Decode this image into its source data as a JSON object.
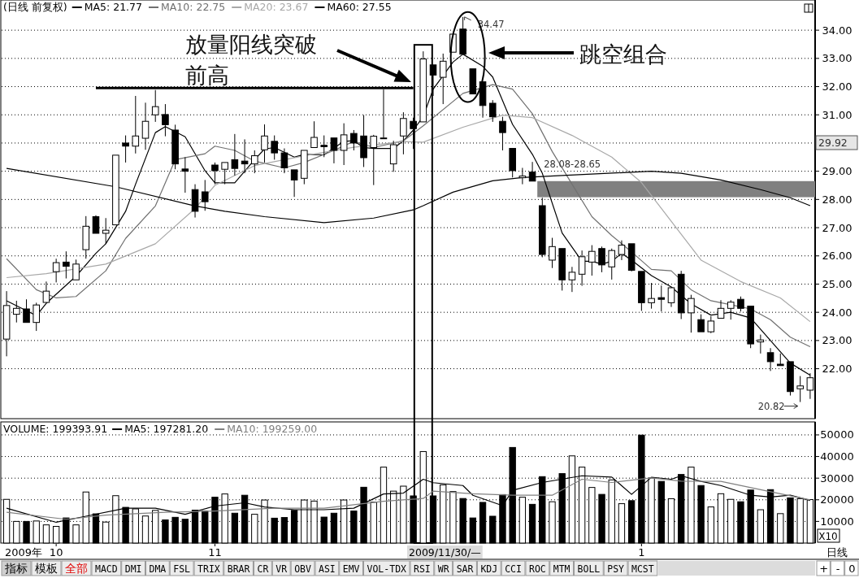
{
  "chart_data": [
    {
      "type": "candlestick",
      "title": "(日线 前复权)",
      "legend": "top left",
      "grid": "y",
      "tick_labels": "y",
      "categories": [
        null,
        null,
        null,
        null,
        null,
        null,
        null,
        null,
        null,
        null,
        null,
        null,
        null,
        null,
        null,
        null,
        null,
        null,
        null,
        null,
        null,
        null,
        null,
        null,
        null,
        null,
        null,
        null,
        null,
        null,
        null,
        null,
        null,
        null,
        null,
        null,
        null,
        null,
        null,
        null,
        null,
        null,
        null,
        null,
        null,
        null,
        null,
        null,
        null,
        null,
        null,
        null,
        null,
        null,
        null,
        null,
        null,
        null,
        null,
        null,
        null,
        null,
        null,
        null,
        null,
        null,
        null,
        null,
        null,
        null,
        null,
        null,
        null,
        null,
        null,
        null,
        null,
        null,
        null,
        null,
        null,
        null
      ],
      "ohlc": [
        [
          23.05,
          24.75,
          22.44,
          24.24
        ],
        [
          23.93,
          24.41,
          23.64,
          24.14
        ],
        [
          24.12,
          24.46,
          23.62,
          23.64
        ],
        [
          23.64,
          24.34,
          23.34,
          24.26
        ],
        [
          24.35,
          25.09,
          24.35,
          24.75
        ],
        [
          25.44,
          25.9,
          25.06,
          25.76
        ],
        [
          25.78,
          26.16,
          25.2,
          25.63
        ],
        [
          25.15,
          25.87,
          25.15,
          25.71
        ],
        [
          26.22,
          27.41,
          25.9,
          27.05
        ],
        [
          27.39,
          27.44,
          26.8,
          26.8
        ],
        [
          26.8,
          27.34,
          26.43,
          26.91
        ],
        [
          27.1,
          29.57,
          27.1,
          29.57
        ],
        [
          30.0,
          30.27,
          29.31,
          29.89
        ],
        [
          29.89,
          31.67,
          29.63,
          30.25
        ],
        [
          30.17,
          31.43,
          29.76,
          30.77
        ],
        [
          31.0,
          31.88,
          30.75,
          31.29
        ],
        [
          31.01,
          31.38,
          30.24,
          30.65
        ],
        [
          30.46,
          30.65,
          29.07,
          29.26
        ],
        [
          29.08,
          29.5,
          28.24,
          29.0
        ],
        [
          28.35,
          28.54,
          27.36,
          27.58
        ],
        [
          28.27,
          28.69,
          27.6,
          27.92
        ],
        [
          29.22,
          29.31,
          28.54,
          29.02
        ],
        [
          29.07,
          29.31,
          28.54,
          29.31
        ],
        [
          29.41,
          30.32,
          28.85,
          29.1
        ],
        [
          29.36,
          30.13,
          28.93,
          29.26
        ],
        [
          29.26,
          29.74,
          28.93,
          29.55
        ],
        [
          29.76,
          30.66,
          29.31,
          30.25
        ],
        [
          30.06,
          30.27,
          29.41,
          29.65
        ],
        [
          29.65,
          29.81,
          28.93,
          29.12
        ],
        [
          29.05,
          29.05,
          28.09,
          28.69
        ],
        [
          28.75,
          29.74,
          28.54,
          29.74
        ],
        [
          29.84,
          30.77,
          29.84,
          30.2
        ],
        [
          29.92,
          30.27,
          29.5,
          29.87
        ],
        [
          30.18,
          30.18,
          29.28,
          29.74
        ],
        [
          29.74,
          30.7,
          29.22,
          30.29
        ],
        [
          30.34,
          30.46,
          29.74,
          30.0
        ],
        [
          30.25,
          30.99,
          29.15,
          29.48
        ],
        [
          29.84,
          30.29,
          28.51,
          30.24
        ],
        [
          30.18,
          31.9,
          30.18,
          30.18
        ],
        [
          29.26,
          30.08,
          28.98,
          29.94
        ],
        [
          30.25,
          31.09,
          29.6,
          30.87
        ],
        [
          30.77,
          30.9,
          29.79,
          30.51
        ],
        [
          30.75,
          33.25,
          30.75,
          32.98
        ],
        [
          32.77,
          32.77,
          31.67,
          32.41
        ],
        [
          32.33,
          33.17,
          31.38,
          32.9
        ],
        [
          33.22,
          33.86,
          33.22,
          33.86
        ],
        [
          34.04,
          34.47,
          33.15,
          33.15
        ],
        [
          32.63,
          32.63,
          31.74,
          31.74
        ],
        [
          32.17,
          32.17,
          30.9,
          31.33
        ],
        [
          31.41,
          31.52,
          30.75,
          30.93
        ],
        [
          30.77,
          30.93,
          29.74,
          30.37
        ],
        [
          29.81,
          29.81,
          28.78,
          29.02
        ],
        [
          28.77,
          29.12,
          28.54,
          28.83
        ],
        [
          28.97,
          29.33,
          28.65,
          28.65
        ],
        [
          27.78,
          28.06,
          25.95,
          26.05
        ],
        [
          25.85,
          26.64,
          25.57,
          26.33
        ],
        [
          26.26,
          26.26,
          24.77,
          25.15
        ],
        [
          25.15,
          25.61,
          24.72,
          25.42
        ],
        [
          25.35,
          26.19,
          24.94,
          25.97
        ],
        [
          25.78,
          26.38,
          25.3,
          26.16
        ],
        [
          26.26,
          26.33,
          25.42,
          25.68
        ],
        [
          25.61,
          26.26,
          25.16,
          26.19
        ],
        [
          26.05,
          26.55,
          25.85,
          26.38
        ],
        [
          26.43,
          26.45,
          25.45,
          25.49
        ],
        [
          25.45,
          25.45,
          24.05,
          24.34
        ],
        [
          24.34,
          25.04,
          24.13,
          24.49
        ],
        [
          24.52,
          24.95,
          24.03,
          24.46
        ],
        [
          24.34,
          24.89,
          24.19,
          24.87
        ],
        [
          25.35,
          25.47,
          23.76,
          23.98
        ],
        [
          23.98,
          24.62,
          23.28,
          24.49
        ],
        [
          23.74,
          23.93,
          23.31,
          23.31
        ],
        [
          23.31,
          23.86,
          23.26,
          23.69
        ],
        [
          23.79,
          24.43,
          23.79,
          24.14
        ],
        [
          24.14,
          24.43,
          23.74,
          24.36
        ],
        [
          24.46,
          24.56,
          24.03,
          24.14
        ],
        [
          24.22,
          24.24,
          22.73,
          22.88
        ],
        [
          22.95,
          23.21,
          22.54,
          23.02
        ],
        [
          22.57,
          22.73,
          21.92,
          22.25
        ],
        [
          22.16,
          22.54,
          22.11,
          22.11
        ],
        [
          22.25,
          22.25,
          21.05,
          21.19
        ],
        [
          21.29,
          21.74,
          20.82,
          21.39
        ],
        [
          21.24,
          21.84,
          20.93,
          21.68
        ]
      ],
      "series": [
        {
          "type": "line",
          "name": "MA5: 21.77",
          "color": "#000000",
          "values": [
            24.41,
            null,
            null,
            23.88,
            24.32,
            null,
            null,
            25.28,
            null,
            26.09,
            26.43,
            null,
            27.58,
            28.54,
            null,
            30.37,
            30.58,
            null,
            30.22,
            null,
            29.02,
            28.59,
            null,
            28.59,
            null,
            29.41,
            29.79,
            29.84,
            null,
            29.5,
            29.6,
            null,
            29.58,
            null,
            30.06,
            30.08,
            29.84,
            29.81,
            null,
            29.81,
            30.08,
            30.46,
            30.94,
            31.91,
            null,
            32.87,
            33.15,
            null,
            32.72,
            32.34,
            null,
            30.66,
            null,
            29.6,
            28.93,
            null,
            26.81,
            null,
            25.81,
            25.81,
            25.71,
            25.81,
            26.09,
            25.85,
            null,
            25.3,
            null,
            24.9,
            null,
            24.3,
            null,
            23.9,
            null,
            24.0,
            null,
            23.8,
            null,
            23.0,
            null,
            22.2,
            null,
            21.77
          ]
        },
        {
          "type": "line",
          "name": "MA10: 22.75",
          "color": "#707070",
          "values": [
            25.9,
            null,
            null,
            24.8,
            null,
            24.51,
            null,
            24.56,
            null,
            null,
            25.47,
            null,
            26.62,
            null,
            null,
            27.77,
            null,
            29.41,
            null,
            null,
            29.62,
            29.89,
            null,
            29.74,
            null,
            29.36,
            null,
            null,
            29.12,
            null,
            29.31,
            null,
            null,
            29.74,
            null,
            30.06,
            null,
            29.84,
            null,
            null,
            30.08,
            null,
            30.61,
            null,
            null,
            null,
            31.76,
            null,
            null,
            32.07,
            null,
            31.91,
            null,
            31.04,
            null,
            29.7,
            null,
            28.54,
            null,
            27.39,
            null,
            26.72,
            null,
            26.14,
            null,
            25.52,
            null,
            25.47,
            null,
            24.8,
            null,
            24.41,
            null,
            24.27,
            null,
            24.12,
            null,
            23.74,
            null,
            23.12,
            null,
            22.78
          ]
        },
        {
          "type": "line",
          "name": "MA20: 23.67",
          "color": "#a8a8a8",
          "values": [
            25.23,
            null,
            null,
            null,
            25.37,
            null,
            null,
            null,
            null,
            null,
            25.71,
            null,
            null,
            null,
            null,
            26.43,
            null,
            null,
            null,
            27.68,
            null,
            28.5,
            null,
            null,
            null,
            29.2,
            null,
            null,
            null,
            null,
            29.55,
            null,
            null,
            null,
            null,
            29.85,
            null,
            null,
            null,
            null,
            30.05,
            null,
            30.03,
            null,
            null,
            null,
            30.56,
            null,
            null,
            null,
            30.99,
            null,
            null,
            30.9,
            null,
            null,
            null,
            30.27,
            null,
            null,
            null,
            29.5,
            null,
            null,
            28.6,
            null,
            null,
            null,
            null,
            null,
            25.85,
            null,
            null,
            null,
            25.09,
            null,
            null,
            null,
            24.51,
            null,
            null,
            23.67
          ]
        },
        {
          "type": "line",
          "name": "MA60: 27.55",
          "color": "#000000",
          "values": [
            29.1,
            null,
            null,
            null,
            null,
            null,
            null,
            null,
            null,
            null,
            null,
            28.45,
            null,
            null,
            null,
            null,
            null,
            null,
            null,
            27.77,
            null,
            null,
            27.58,
            null,
            null,
            null,
            27.39,
            null,
            null,
            null,
            null,
            null,
            27.18,
            null,
            null,
            null,
            null,
            27.34,
            null,
            null,
            null,
            27.63,
            27.78,
            null,
            null,
            28.26,
            null,
            null,
            null,
            28.66,
            null,
            null,
            28.78,
            null,
            null,
            null,
            28.85,
            null,
            null,
            null,
            null,
            null,
            null,
            null,
            null,
            29.0,
            null,
            null,
            28.93,
            null,
            null,
            null,
            28.69,
            null,
            null,
            null,
            28.35,
            null,
            null,
            28.06,
            null,
            27.78
          ]
        },
        {
          "type": "line",
          "color": "#000000",
          "values": [
            null,
            null,
            null,
            null,
            null,
            null,
            null,
            null,
            null,
            31.95,
            31.95,
            31.95,
            31.95,
            31.95,
            31.95,
            31.95,
            31.95,
            31.95,
            31.95,
            31.95,
            31.95,
            31.95,
            31.95,
            31.95,
            31.95,
            31.95,
            31.95,
            31.95,
            31.95,
            31.95,
            31.95,
            31.95,
            31.95,
            31.95,
            31.95,
            31.95,
            31.95,
            31.95,
            31.95,
            31.95,
            31.95,
            31.95,
            null,
            null,
            null,
            null,
            null,
            null,
            null,
            null,
            null,
            null,
            null,
            null,
            null,
            null,
            null,
            null,
            null,
            null,
            null,
            null,
            null,
            null,
            null,
            null,
            null,
            null,
            null,
            null,
            null,
            null,
            null,
            null,
            null,
            null,
            null,
            null,
            null,
            null,
            null,
            null
          ]
        }
      ],
      "bands": [
        {
          "axis": "y",
          "from": 28.08,
          "to": 28.65,
          "label": "28.08-28.65",
          "color": "#808080"
        }
      ],
      "ylim": [
        20.23,
        35.07
      ],
      "yticks": [
        {
          "value": 22,
          "label": "22.00"
        },
        {
          "value": 23,
          "label": "23.00"
        },
        {
          "value": 24,
          "label": "24.00"
        },
        {
          "value": 25,
          "label": "25.00"
        },
        {
          "value": 26,
          "label": "26.00"
        },
        {
          "value": 27,
          "label": "27.00"
        },
        {
          "value": 28,
          "label": "28.00"
        },
        {
          "value": 29,
          "label": "29.00"
        },
        {
          "value": 30,
          "label": null
        },
        {
          "value": 31,
          "label": "31.00"
        },
        {
          "value": 32,
          "label": "32.00"
        },
        {
          "value": 33,
          "label": "33.00"
        },
        {
          "value": 34,
          "label": "34.00"
        }
      ],
      "annotations": [
        "放量阳线突破前高",
        "跳空组合",
        "34.47",
        "20.82",
        "29.92"
      ]
    },
    {
      "type": "bar",
      "title": "VOLUME: 199393.91",
      "legend": "top left",
      "grid": "y",
      "categories": [
        null,
        null,
        null,
        null,
        null,
        "10",
        null,
        null,
        null,
        null,
        null,
        null,
        null,
        null,
        null,
        null,
        null,
        null,
        null,
        null,
        null,
        "11",
        null,
        null,
        null,
        null,
        null,
        null,
        null,
        null,
        null,
        null,
        null,
        null,
        null,
        null,
        null,
        null,
        null,
        null,
        null,
        null,
        null,
        null,
        null,
        null,
        null,
        null,
        null,
        null,
        null,
        null,
        null,
        null,
        null,
        null,
        null,
        null,
        null,
        null,
        null,
        null,
        null,
        null,
        "1",
        null,
        null,
        null,
        null,
        null,
        null,
        null,
        null,
        null,
        null,
        null,
        null,
        null,
        null,
        null,
        null,
        null
      ],
      "series": [
        {
          "type": "bar",
          "values": [
            20200,
            10000,
            10000,
            10200,
            8400,
            7700,
            11600,
            8400,
            23600,
            13500,
            9700,
            21900,
            16500,
            15800,
            12500,
            15100,
            10700,
            11900,
            11000,
            15200,
            14800,
            21200,
            22700,
            13800,
            22100,
            13300,
            19900,
            11500,
            11800,
            15100,
            19900,
            19400,
            12000,
            13800,
            19900,
            14800,
            25800,
            18900,
            35100,
            24000,
            26300,
            21800,
            42300,
            21800,
            26900,
            23800,
            20600,
            11600,
            18800,
            12400,
            22400,
            44200,
            21200,
            17900,
            30700,
            19100,
            32100,
            40300,
            35100,
            25700,
            22500,
            29200,
            18200,
            19600,
            49900,
            30100,
            28500,
            20500,
            31700,
            35100,
            26600,
            16700,
            22800,
            20200,
            19100,
            24500,
            15400,
            24700,
            13600,
            20900,
            20500,
            20100
          ],
          "colors": [
            "#ffffff",
            "#ffffff",
            "#000000",
            "#ffffff",
            "#ffffff",
            "#ffffff",
            "#000000",
            "#ffffff",
            "#ffffff",
            "#000000",
            "#ffffff",
            "#ffffff",
            "#000000",
            "#ffffff",
            "#ffffff",
            "#ffffff",
            "#000000",
            "#000000",
            "#000000",
            "#000000",
            "#000000",
            "#000000",
            "#ffffff",
            "#000000",
            "#000000",
            "#ffffff",
            "#ffffff",
            "#000000",
            "#000000",
            "#000000",
            "#ffffff",
            "#ffffff",
            "#000000",
            "#000000",
            "#ffffff",
            "#000000",
            "#000000",
            "#ffffff",
            "#ffffff",
            "#ffffff",
            "#ffffff",
            "#000000",
            "#ffffff",
            "#000000",
            "#ffffff",
            "#ffffff",
            "#000000",
            "#000000",
            "#000000",
            "#000000",
            "#000000",
            "#000000",
            "#ffffff",
            "#000000",
            "#000000",
            "#ffffff",
            "#000000",
            "#ffffff",
            "#ffffff",
            "#ffffff",
            "#000000",
            "#ffffff",
            "#ffffff",
            "#000000",
            "#000000",
            "#ffffff",
            "#000000",
            "#ffffff",
            "#000000",
            "#ffffff",
            "#000000",
            "#ffffff",
            "#ffffff",
            "#ffffff",
            "#000000",
            "#000000",
            "#ffffff",
            "#000000",
            "#ffffff",
            "#000000",
            "#ffffff",
            "#ffffff"
          ]
        },
        {
          "type": "line",
          "name": "MA5: 197281.20",
          "color": "#000000",
          "values": [
            16100,
            null,
            null,
            null,
            null,
            9600,
            null,
            null,
            12400,
            null,
            null,
            null,
            16100,
            null,
            null,
            16100,
            null,
            null,
            13300,
            null,
            null,
            17100,
            null,
            null,
            18600,
            null,
            16700,
            null,
            null,
            15400,
            null,
            null,
            15400,
            null,
            null,
            16100,
            null,
            null,
            22700,
            null,
            23100,
            null,
            29500,
            27900,
            null,
            null,
            26600,
            22100,
            null,
            null,
            17300,
            24400,
            null,
            null,
            28000,
            null,
            null,
            null,
            31100,
            null,
            null,
            30500,
            null,
            22500,
            null,
            30400,
            null,
            29500,
            31100,
            null,
            28500,
            null,
            26600,
            null,
            null,
            22100,
            null,
            21300,
            null,
            22100,
            null,
            19700
          ]
        },
        {
          "type": "line",
          "name": "MA10: 199259.00",
          "color": "#808080",
          "values": [
            14200,
            null,
            null,
            null,
            null,
            null,
            11000,
            null,
            null,
            null,
            12900,
            null,
            null,
            null,
            null,
            null,
            14200,
            null,
            null,
            null,
            null,
            14800,
            null,
            null,
            null,
            null,
            null,
            16100,
            null,
            null,
            null,
            null,
            16100,
            null,
            null,
            null,
            null,
            null,
            19300,
            null,
            null,
            null,
            20600,
            24000,
            null,
            null,
            null,
            22800,
            null,
            null,
            null,
            22100,
            null,
            null,
            null,
            22100,
            null,
            null,
            29500,
            null,
            null,
            28000,
            null,
            null,
            null,
            30100,
            null,
            null,
            28600,
            null,
            null,
            null,
            28500,
            null,
            null,
            null,
            null,
            23700,
            null,
            null,
            null,
            20000
          ]
        }
      ],
      "ylim": [
        0,
        56000
      ],
      "yticks": [
        10000,
        20000,
        30000,
        40000,
        50000
      ],
      "annotations": [
        "2009年",
        "2009/11/30/—",
        "X10",
        "日线"
      ]
    },
    {
      "type": "other",
      "annotations": [
        "指标",
        "模板",
        "全部",
        "MACD",
        "DMI",
        "DMA",
        "FSL",
        "TRIX",
        "BRAR",
        "CR",
        "VR",
        "OBV",
        "ASI",
        "EMV",
        "VOL-TDX",
        "RSI",
        "WR",
        "SAR",
        "KDJ",
        "CCI",
        "ROC",
        "MTM",
        "BOLL",
        "PSY",
        "MCST",
        "+",
        "-",
        "0"
      ]
    }
  ]
}
